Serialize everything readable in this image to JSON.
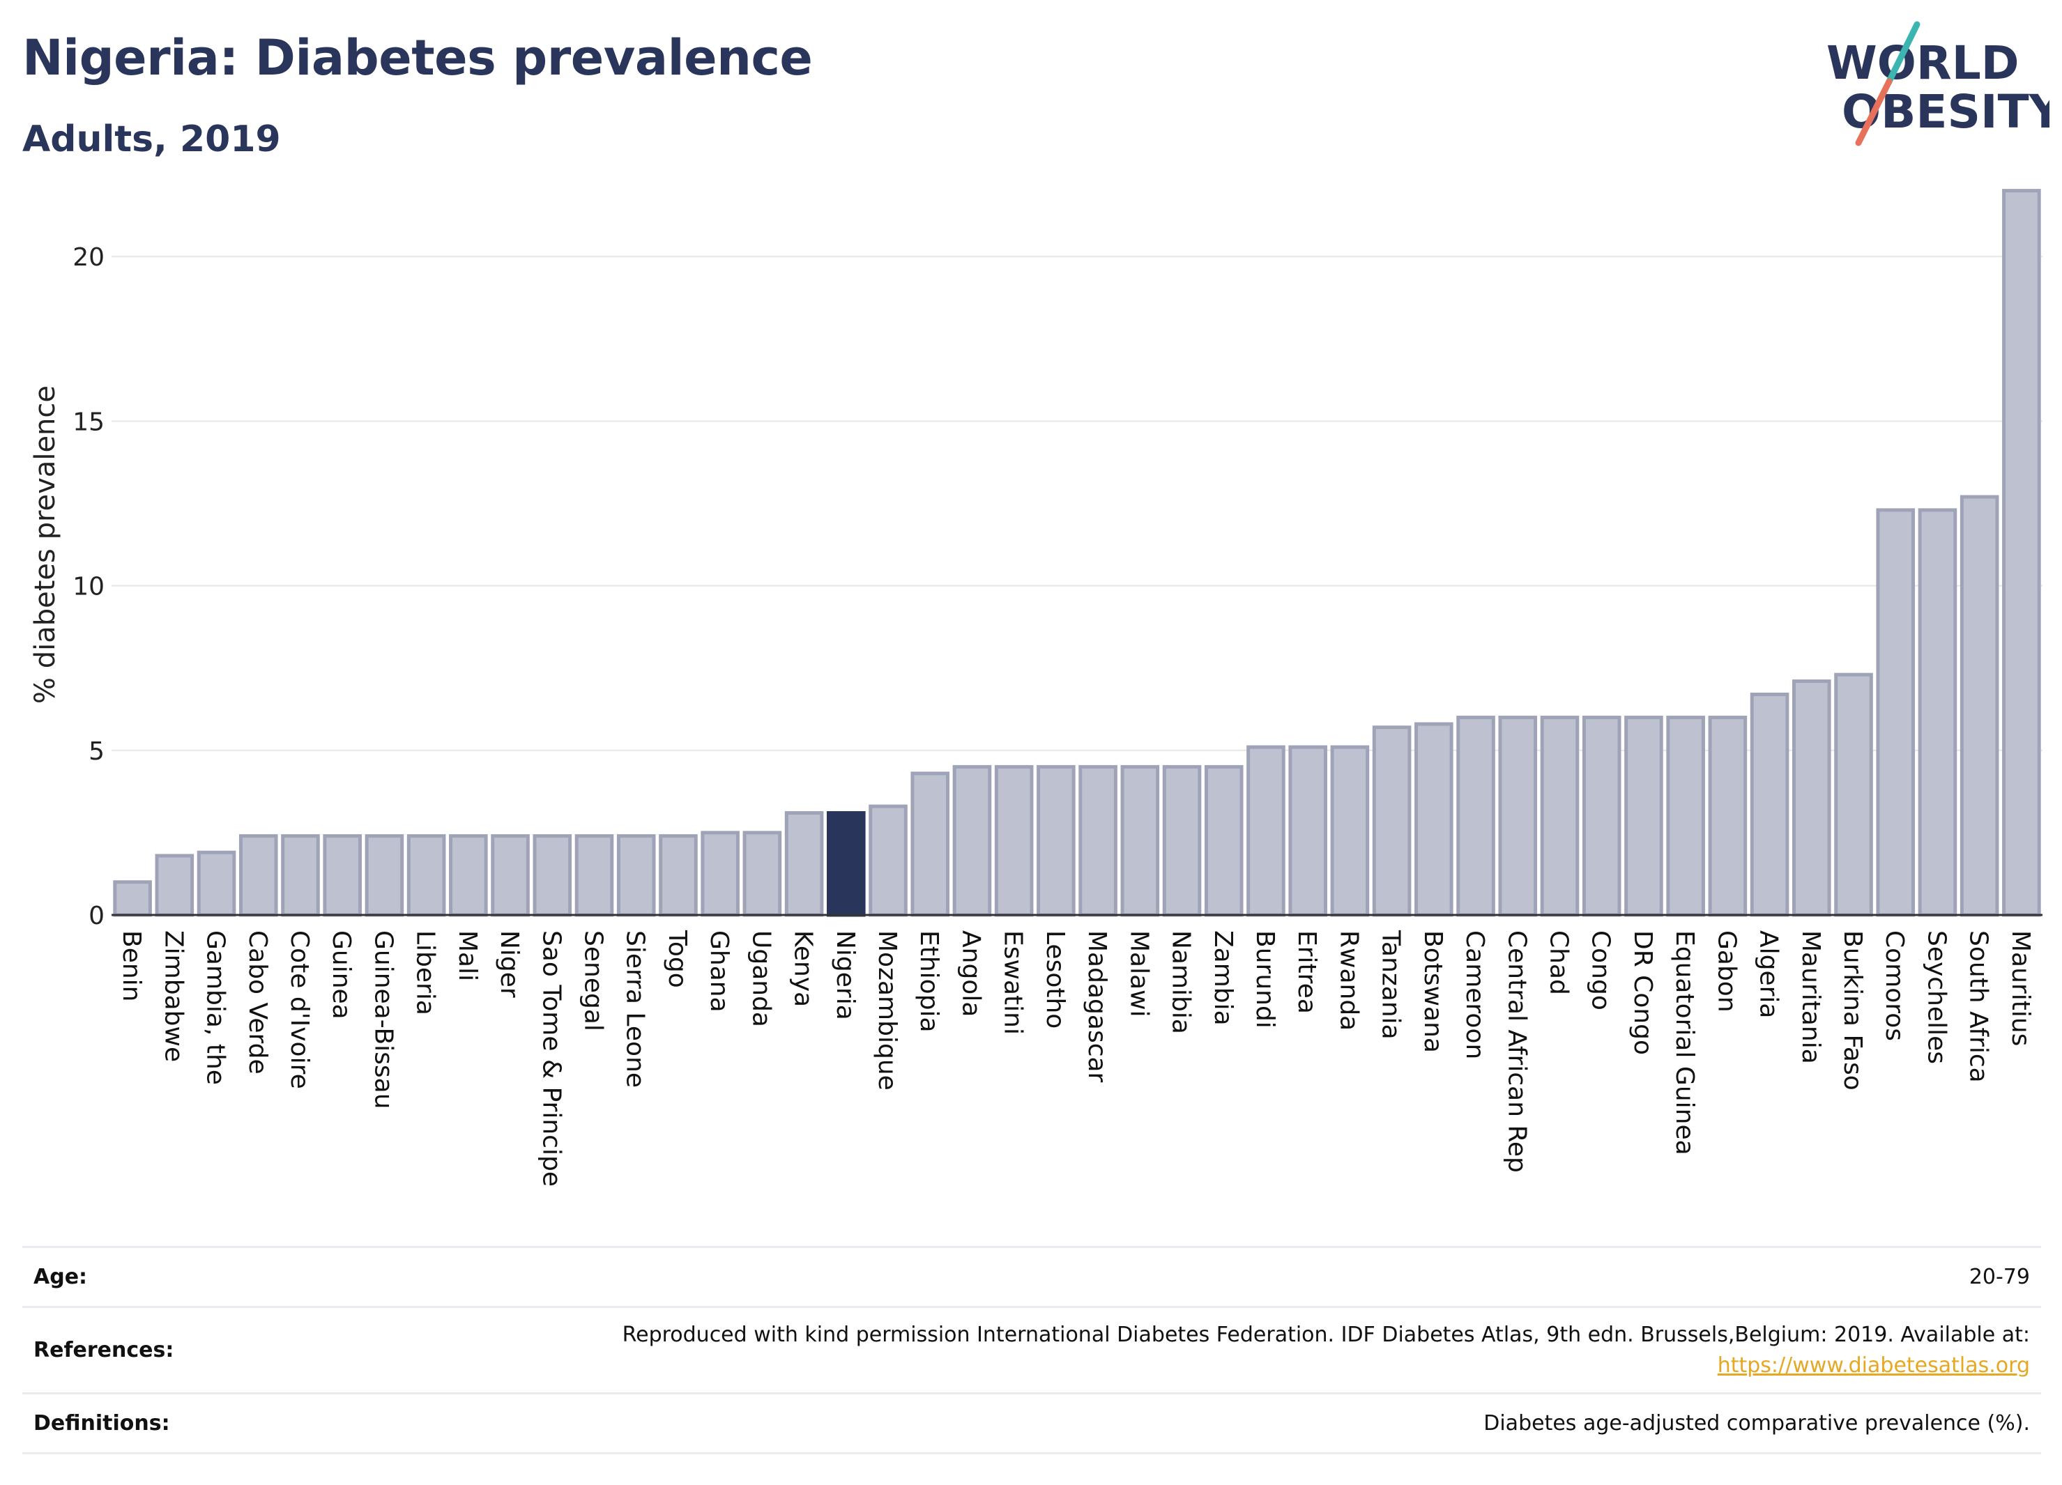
{
  "header": {
    "title": "Nigeria: Diabetes prevalence",
    "subtitle": "Adults, 2019"
  },
  "logo": {
    "line1": "WORLD",
    "line2": "OBESITY",
    "accent_teal": "#3ab5b0",
    "accent_red": "#e8715c",
    "text_color": "#2a355c"
  },
  "chart_data": {
    "type": "bar",
    "title": "Nigeria: Diabetes prevalence",
    "subtitle": "Adults, 2019",
    "xlabel": "",
    "ylabel": "% diabetes prevalence",
    "ylim": [
      0,
      22.5
    ],
    "yticks": [
      0,
      5,
      10,
      15,
      20
    ],
    "grid": true,
    "highlight": "Nigeria",
    "colors": {
      "default": "#bec2d0",
      "default_border": "#9ea3b8",
      "highlight": "#2a355c"
    },
    "categories": [
      "Benin",
      "Zimbabwe",
      "Gambia, the",
      "Cabo Verde",
      "Cote d'Ivoire",
      "Guinea",
      "Guinea-Bissau",
      "Liberia",
      "Mali",
      "Niger",
      "Sao Tome & Principe",
      "Senegal",
      "Sierra Leone",
      "Togo",
      "Ghana",
      "Uganda",
      "Kenya",
      "Nigeria",
      "Mozambique",
      "Ethiopia",
      "Angola",
      "Eswatini",
      "Lesotho",
      "Madagascar",
      "Malawi",
      "Namibia",
      "Zambia",
      "Burundi",
      "Eritrea",
      "Rwanda",
      "Tanzania",
      "Botswana",
      "Cameroon",
      "Central African Rep",
      "Chad",
      "Congo",
      "DR Congo",
      "Equatorial Guinea",
      "Gabon",
      "Algeria",
      "Mauritania",
      "Burkina Faso",
      "Comoros",
      "Seychelles",
      "South Africa",
      "Mauritius"
    ],
    "values": [
      1.0,
      1.8,
      1.9,
      2.4,
      2.4,
      2.4,
      2.4,
      2.4,
      2.4,
      2.4,
      2.4,
      2.4,
      2.4,
      2.4,
      2.5,
      2.5,
      3.1,
      3.1,
      3.3,
      4.3,
      4.5,
      4.5,
      4.5,
      4.5,
      4.5,
      4.5,
      4.5,
      5.1,
      5.1,
      5.1,
      5.7,
      5.8,
      6.0,
      6.0,
      6.0,
      6.0,
      6.0,
      6.0,
      6.0,
      6.7,
      7.1,
      7.3,
      12.3,
      12.3,
      12.7,
      22.0
    ]
  },
  "info": {
    "age_label": "Age:",
    "age_value": "20-79",
    "references_label": "References:",
    "references_text": "Reproduced with kind permission International Diabetes Federation. IDF Diabetes Atlas, 9th edn. Brussels,Belgium: 2019. Available at:",
    "references_link": "https://www.diabetesatlas.org",
    "definitions_label": "Definitions:",
    "definitions_value": "Diabetes age-adjusted comparative prevalence (%)."
  }
}
